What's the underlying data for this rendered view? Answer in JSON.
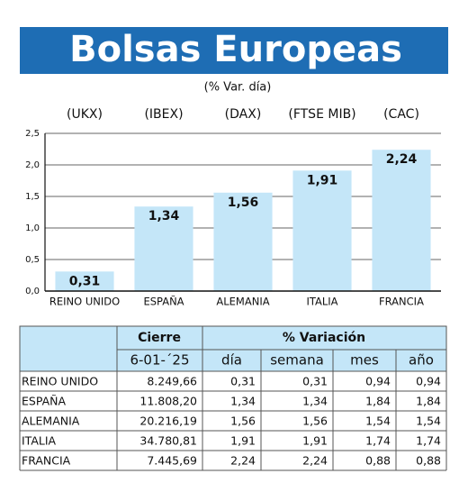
{
  "chart_data": {
    "type": "bar",
    "title": "Bolsas Europeas",
    "subtitle": "(% Var. día)",
    "codes": [
      "(UKX)",
      "(IBEX)",
      "(DAX)",
      "(FTSE MIB)",
      "(CAC)"
    ],
    "categories": [
      "REINO UNIDO",
      "ESPAÑA",
      "ALEMANIA",
      "ITALIA",
      "FRANCIA"
    ],
    "values": [
      0.31,
      1.34,
      1.56,
      1.91,
      2.24
    ],
    "value_labels": [
      "0,31",
      "1,34",
      "1,56",
      "1,91",
      "2,24"
    ],
    "color": "#c4e6f8",
    "ylim": [
      0,
      2.5
    ],
    "yticks": [
      {
        "value": 0,
        "label": "0,0"
      },
      {
        "value": 0.5,
        "label": "0,5"
      },
      {
        "value": 1,
        "label": "1,0"
      },
      {
        "value": 1.5,
        "label": "1,5"
      },
      {
        "value": 2,
        "label": "2,0"
      },
      {
        "value": 2.5,
        "label": "2,5"
      }
    ],
    "grid": true
  },
  "table": {
    "group_headers": [
      "Cierre",
      "% Variación"
    ],
    "columns": [
      "6-01-´25",
      "día",
      "semana",
      "mes",
      "año"
    ],
    "rows": [
      [
        "REINO UNIDO",
        "8.249,66",
        "0,31",
        "0,31",
        "0,94",
        "0,94"
      ],
      [
        "ESPAÑA",
        "11.808,20",
        "1,34",
        "1,34",
        "1,84",
        "1,84"
      ],
      [
        "ALEMANIA",
        "20.216,19",
        "1,56",
        "1,56",
        "1,54",
        "1,54"
      ],
      [
        "ITALIA",
        "34.780,81",
        "1,91",
        "1,91",
        "1,74",
        "1,74"
      ],
      [
        "FRANCIA",
        "7.445,69",
        "2,24",
        "2,24",
        "0,88",
        "0,88"
      ]
    ]
  }
}
